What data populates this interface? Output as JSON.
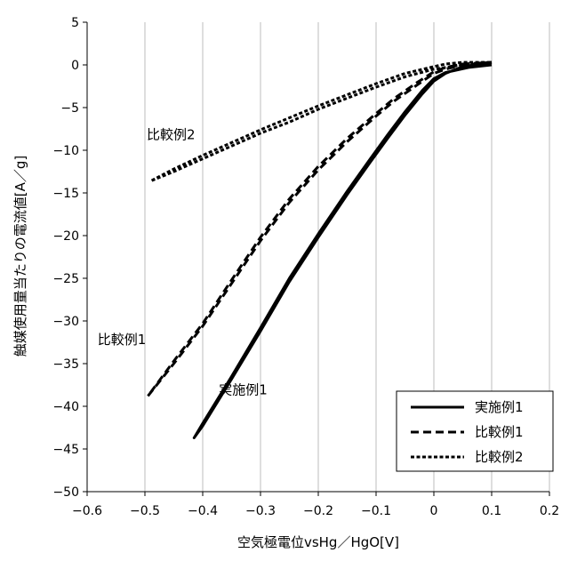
{
  "chart_data": {
    "type": "line",
    "title": "",
    "xlabel": "空気極電位vsHg／HgO[V]",
    "ylabel": "触媒使用量当たりの電流値[A／g]",
    "xlim": [
      -0.6,
      0.2
    ],
    "ylim": [
      -50,
      5
    ],
    "xticks": [
      -0.6,
      -0.5,
      -0.4,
      -0.3,
      -0.2,
      -0.1,
      0,
      0.1,
      0.2
    ],
    "xtick_labels": [
      "−0.6",
      "−0.5",
      "−0.4",
      "−0.3",
      "−0.2",
      "−0.1",
      "0",
      "0.1",
      "0.2"
    ],
    "yticks": [
      5,
      0,
      -5,
      -10,
      -15,
      -20,
      -25,
      -30,
      -35,
      -40,
      -45,
      -50
    ],
    "ytick_labels": [
      "5",
      "0",
      "−5",
      "−10",
      "−15",
      "−20",
      "−25",
      "−30",
      "−35",
      "−40",
      "−45",
      "−50"
    ],
    "grid": "vertical",
    "legend_position": "bottom-right",
    "series": [
      {
        "name": "実施例1",
        "style": "solid",
        "x": [
          0.1,
          0.06,
          0.02,
          0.0,
          -0.02,
          -0.05,
          -0.08,
          -0.11,
          -0.15,
          -0.2,
          -0.25,
          -0.3,
          -0.35,
          -0.4,
          -0.415,
          -0.4,
          -0.35,
          -0.3,
          -0.25,
          -0.2,
          -0.15,
          -0.11,
          -0.08,
          -0.05,
          -0.02,
          0.0,
          0.02,
          0.05,
          0.08,
          0.1
        ],
        "y": [
          0.0,
          -0.3,
          -0.9,
          -1.6,
          -3.0,
          -5.5,
          -8.2,
          -11.0,
          -14.8,
          -19.8,
          -25.0,
          -30.8,
          -36.5,
          -42.0,
          -43.7,
          -42.3,
          -36.8,
          -31.2,
          -25.4,
          -20.2,
          -15.2,
          -11.4,
          -8.6,
          -5.9,
          -3.4,
          -1.9,
          -1.0,
          -0.2,
          0.1,
          0.2
        ]
      },
      {
        "name": "比較例1",
        "style": "dashed",
        "x": [
          0.1,
          0.05,
          0.02,
          0.0,
          -0.03,
          -0.07,
          -0.1,
          -0.15,
          -0.2,
          -0.25,
          -0.3,
          -0.35,
          -0.4,
          -0.45,
          -0.495,
          -0.45,
          -0.4,
          -0.35,
          -0.3,
          -0.25,
          -0.2,
          -0.15,
          -0.1,
          -0.07,
          -0.03,
          0.0,
          0.02,
          0.05,
          0.1
        ],
        "y": [
          0.3,
          0.0,
          -0.5,
          -1.0,
          -2.4,
          -4.3,
          -6.0,
          -9.0,
          -12.3,
          -16.1,
          -20.6,
          -25.6,
          -30.6,
          -35.0,
          -38.8,
          -34.7,
          -30.3,
          -25.2,
          -20.2,
          -15.7,
          -11.9,
          -8.6,
          -5.7,
          -4.0,
          -2.1,
          -0.8,
          -0.3,
          0.1,
          0.3
        ]
      },
      {
        "name": "比較例2",
        "style": "dotted",
        "x": [
          0.1,
          0.05,
          0.02,
          0.0,
          -0.05,
          -0.1,
          -0.15,
          -0.2,
          -0.25,
          -0.3,
          -0.35,
          -0.4,
          -0.45,
          -0.49,
          -0.45,
          -0.4,
          -0.35,
          -0.3,
          -0.25,
          -0.2,
          -0.15,
          -0.1,
          -0.05,
          0.0,
          0.02,
          0.05,
          0.1
        ],
        "y": [
          0.3,
          0.0,
          -0.3,
          -0.5,
          -1.4,
          -2.6,
          -3.9,
          -5.2,
          -6.7,
          -8.0,
          -9.5,
          -11.0,
          -12.5,
          -13.6,
          -12.2,
          -10.6,
          -9.1,
          -7.6,
          -6.2,
          -4.8,
          -3.5,
          -2.2,
          -1.0,
          -0.2,
          0.1,
          0.3,
          0.3
        ]
      }
    ],
    "annotations": [
      {
        "text": "比較例2",
        "x": -0.455,
        "y": -8.7
      },
      {
        "text": "比較例1",
        "x": -0.54,
        "y": -32.7
      },
      {
        "text": "実施例1",
        "x": -0.33,
        "y": -38.6
      }
    ]
  }
}
